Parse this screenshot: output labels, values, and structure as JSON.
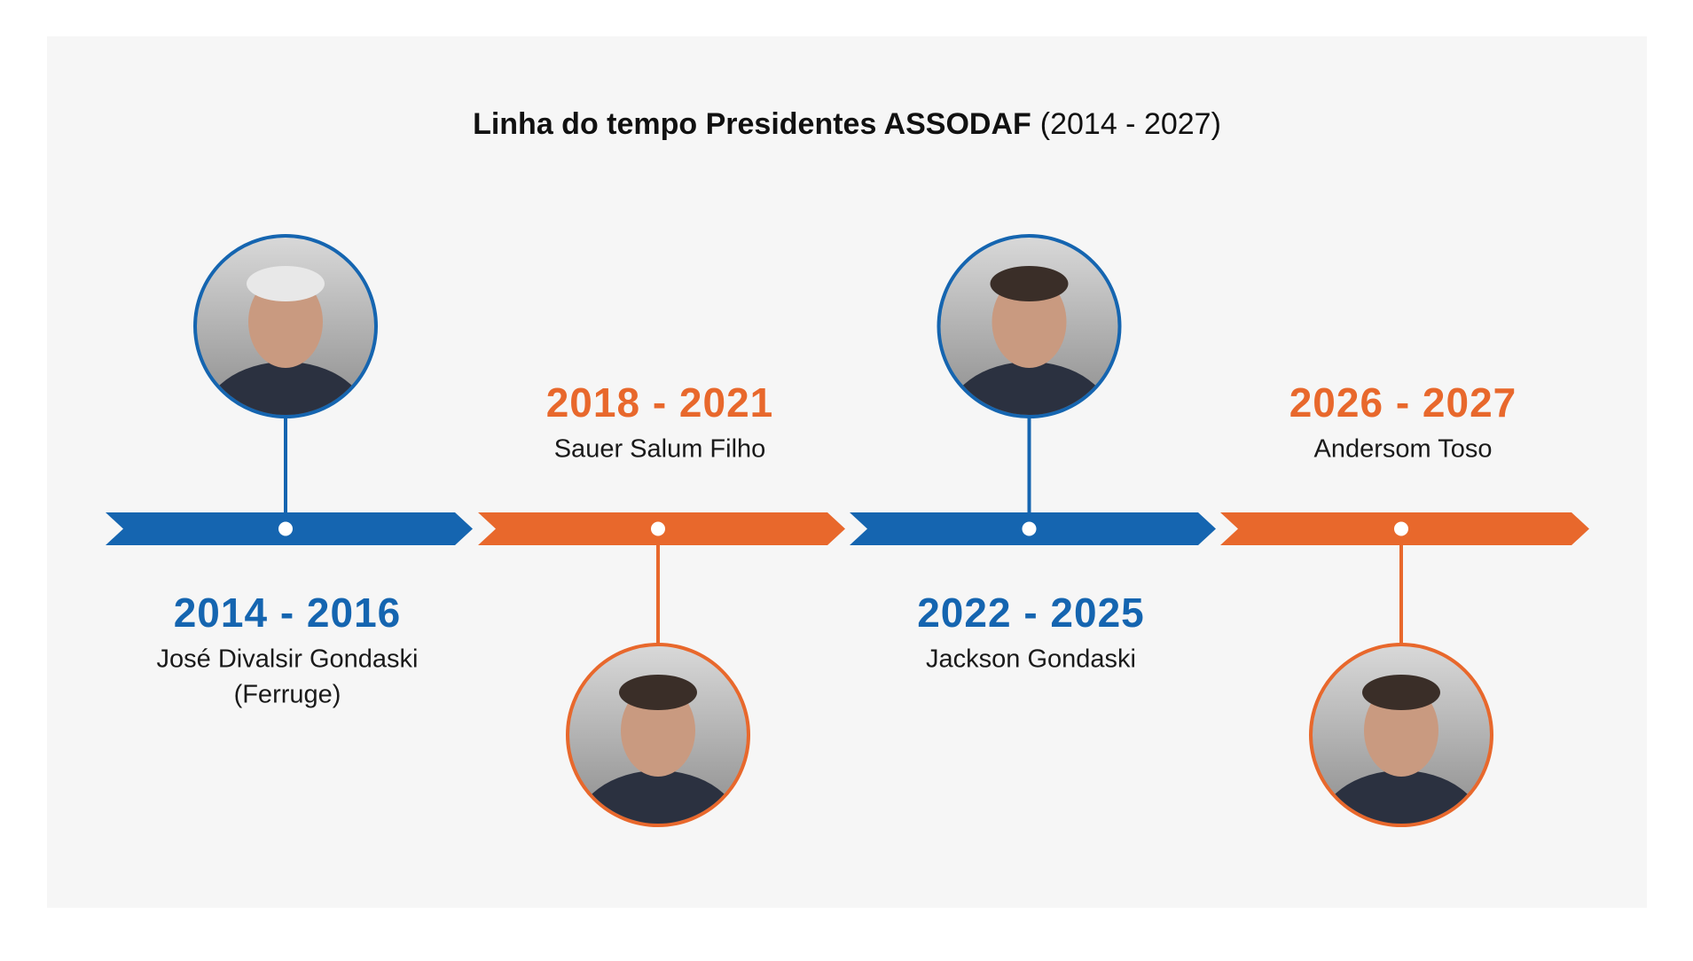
{
  "title": "Linha do tempo Presidentes ASSODAF",
  "title_period": "(2014 - 2027)",
  "presidents": [
    {
      "period": "2014 - 2016",
      "name": [
        "José Divalsir Gondaski",
        "(Ferruge)"
      ]
    },
    {
      "period": "2018 - 2021",
      "name": [
        "Sauer Salum Filho"
      ]
    },
    {
      "period": "2022 - 2025",
      "name": [
        "Jackson Gondaski"
      ]
    },
    {
      "period": "2026 - 2027",
      "name": [
        "Andersom Toso"
      ]
    }
  ]
}
